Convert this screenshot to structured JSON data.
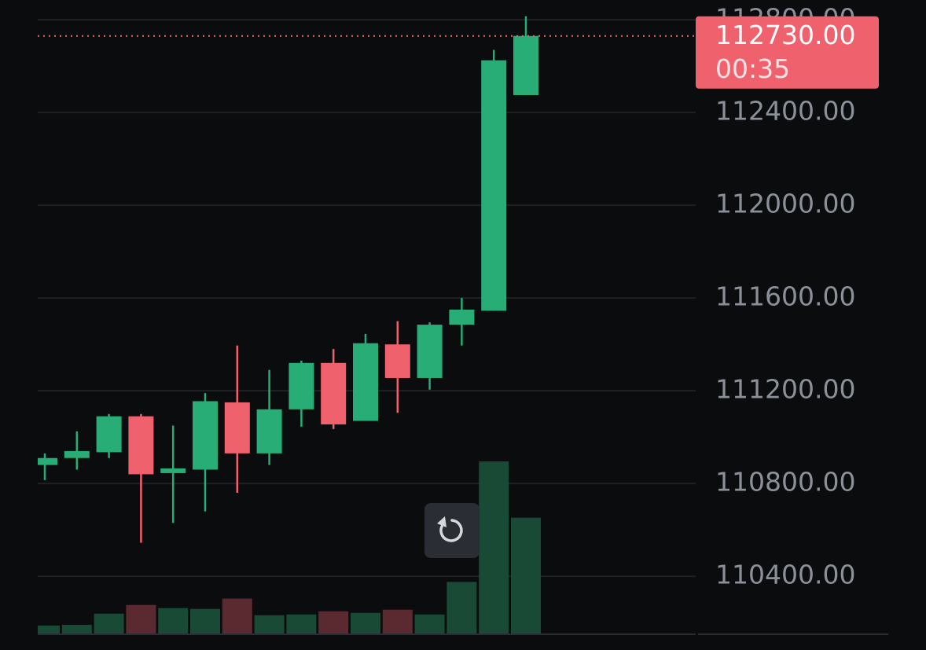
{
  "chart_data": {
    "type": "candlestick",
    "categories": [
      null,
      null,
      null,
      null,
      null,
      null,
      null,
      null,
      null,
      null,
      null,
      null,
      null,
      null,
      null,
      null
    ],
    "open": [
      110880,
      110910,
      110935,
      111090,
      110845,
      110860,
      111150,
      110930,
      111120,
      111320,
      111070,
      111400,
      111255,
      111485,
      111545,
      112475
    ],
    "high": [
      110930,
      111025,
      111100,
      111100,
      111050,
      111190,
      111395,
      111290,
      111330,
      111380,
      111445,
      111500,
      111495,
      111600,
      112670,
      112815
    ],
    "low": [
      110815,
      110860,
      110910,
      110545,
      110630,
      110680,
      110760,
      110880,
      111045,
      111035,
      111070,
      111105,
      111205,
      111395,
      111545,
      112475
    ],
    "close": [
      110910,
      110940,
      111090,
      110840,
      110865,
      111155,
      110930,
      111120,
      111320,
      111055,
      111405,
      111255,
      111485,
      111550,
      112625,
      112730
    ],
    "volume": [
      11,
      12,
      26,
      37,
      33,
      32,
      45,
      24,
      25,
      29,
      27,
      31,
      25,
      66,
      218,
      147
    ],
    "up_color": "#27ad75",
    "down_color": "#ef616c",
    "volume_up_color": "#184a35",
    "volume_down_color": "#5b2a31",
    "ylim": [
      110150,
      112885
    ],
    "yticks": [
      {
        "value": 110400,
        "label": "110400.00"
      },
      {
        "value": 110800,
        "label": "110800.00"
      },
      {
        "value": 111200,
        "label": "111200.00"
      },
      {
        "value": 111600,
        "label": "111600.00"
      },
      {
        "value": 112000,
        "label": "112000.00"
      },
      {
        "value": 112400,
        "label": "112400.00"
      },
      {
        "value": 112800,
        "label": "112800.00"
      }
    ],
    "y2lim": [
      0,
      800
    ],
    "grid": true,
    "last_price": {
      "value": 112730,
      "label": "112730.00"
    },
    "countdown": "00:35"
  }
}
